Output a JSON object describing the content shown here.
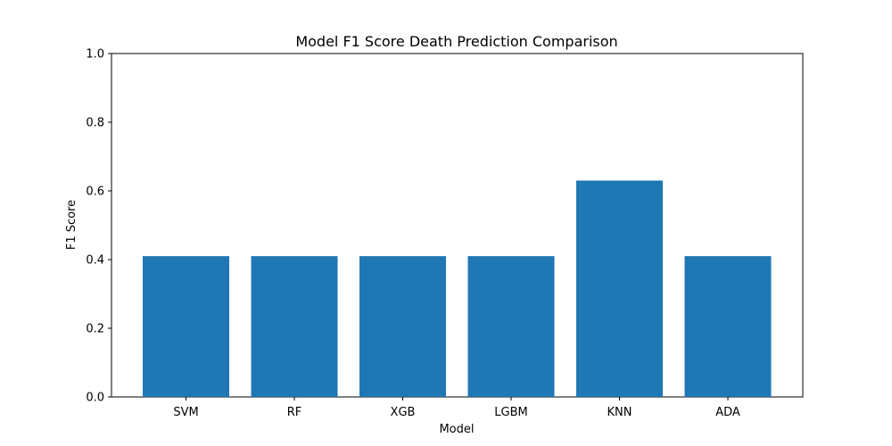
{
  "chart_data": {
    "type": "bar",
    "title": "Model F1 Score Death Prediction Comparison",
    "xlabel": "Model",
    "ylabel": "F1 Score",
    "categories": [
      "SVM",
      "RF",
      "XGB",
      "LGBM",
      "KNN",
      "ADA"
    ],
    "values": [
      0.41,
      0.41,
      0.41,
      0.41,
      0.63,
      0.41
    ],
    "ylim": [
      0.0,
      1.0
    ],
    "yticks": [
      "0.0",
      "0.2",
      "0.4",
      "0.6",
      "0.8",
      "1.0"
    ],
    "grid": false,
    "bar_color": "#1f77b4"
  }
}
